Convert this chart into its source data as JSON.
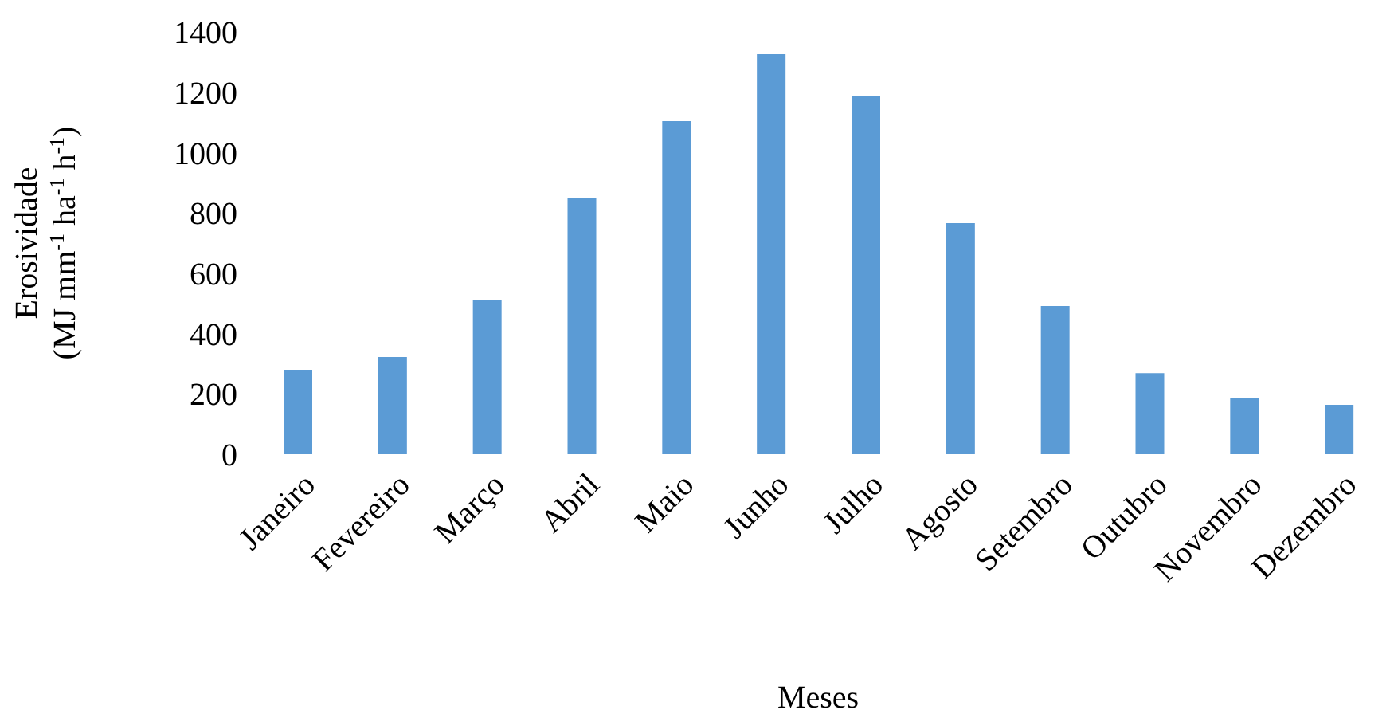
{
  "chart_data": {
    "type": "bar",
    "xlabel": "Meses",
    "ylabel": "Erosividade\n(MJ mm$^{-1}$ ha$^{-1}$ h$^{-1}$)",
    "categories": [
      "Janeiro",
      "Fevereiro",
      "Março",
      "Abril",
      "Maio",
      "Junho",
      "Julho",
      "Agosto",
      "Setembro",
      "Outubro",
      "Novembro",
      "Dezembro"
    ],
    "values": [
      280,
      322,
      512,
      850,
      1104,
      1326,
      1189,
      766,
      491,
      269,
      185,
      164
    ],
    "color": "#5b9bd5",
    "ylim": [
      0,
      1400
    ],
    "yticks": [
      0,
      200,
      400,
      600,
      800,
      1000,
      1200,
      1400
    ],
    "grid": false,
    "legend": false
  }
}
